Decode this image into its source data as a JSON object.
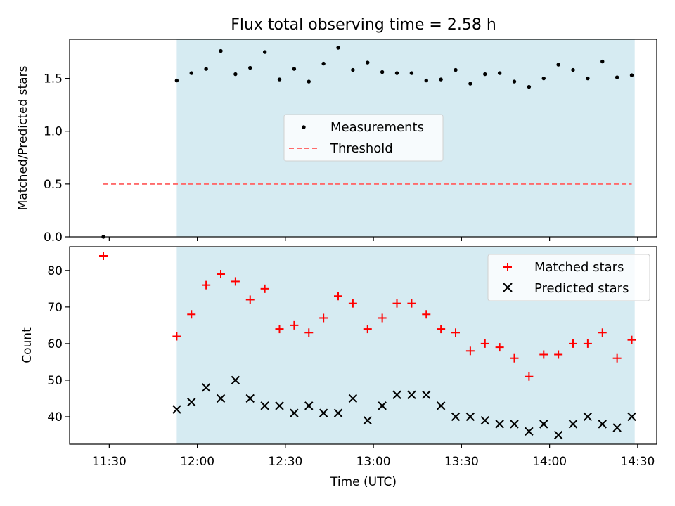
{
  "title": "Flux total observing time = 2.58 h",
  "chart_data": [
    {
      "type": "scatter",
      "ylabel": "Matched/Predicted stars",
      "ylim": [
        0,
        1.87
      ],
      "yticks": [
        "0.0",
        "0.5",
        "1.0",
        "1.5"
      ],
      "ytick_values": [
        0,
        0.5,
        1.0,
        1.5
      ],
      "shaded_span": [
        "11:53",
        "14:29"
      ],
      "legend": {
        "position": "center",
        "entries": [
          "Measurements",
          "Threshold"
        ]
      },
      "series": [
        {
          "name": "Measurements",
          "color": "#000000",
          "x": [
            "11:28",
            "11:53",
            "11:58",
            "12:03",
            "12:08",
            "12:13",
            "12:18",
            "12:23",
            "12:28",
            "12:33",
            "12:38",
            "12:43",
            "12:48",
            "12:53",
            "12:58",
            "13:03",
            "13:08",
            "13:13",
            "13:18",
            "13:23",
            "13:28",
            "13:33",
            "13:38",
            "13:43",
            "13:48",
            "13:53",
            "13:58",
            "14:03",
            "14:08",
            "14:13",
            "14:18",
            "14:23",
            "14:28"
          ],
          "values": [
            0.0,
            1.48,
            1.55,
            1.59,
            1.76,
            1.54,
            1.6,
            1.75,
            1.49,
            1.59,
            1.47,
            1.64,
            1.79,
            1.58,
            1.65,
            1.56,
            1.55,
            1.55,
            1.48,
            1.49,
            1.58,
            1.45,
            1.54,
            1.55,
            1.47,
            1.42,
            1.5,
            1.63,
            1.58,
            1.5,
            1.66,
            1.51,
            1.53
          ]
        },
        {
          "name": "Threshold",
          "color": "#ff6b6b",
          "x": [
            "11:28",
            "14:28"
          ],
          "values": [
            0.5,
            0.5
          ]
        }
      ]
    },
    {
      "type": "scatter",
      "xlabel": "Time (UTC)",
      "ylabel": "Count",
      "ylim": [
        32.5,
        86.5
      ],
      "yticks": [
        "40",
        "50",
        "60",
        "70",
        "80"
      ],
      "ytick_values": [
        40,
        50,
        60,
        70,
        80
      ],
      "xticks": [
        "11:30",
        "12:00",
        "12:30",
        "13:00",
        "13:30",
        "14:00",
        "14:30"
      ],
      "shaded_span": [
        "11:53",
        "14:29"
      ],
      "legend": {
        "position": "top-right",
        "entries": [
          "Matched stars",
          "Predicted stars"
        ]
      },
      "series": [
        {
          "name": "Matched stars",
          "color": "#ff0000",
          "x": [
            "11:28",
            "11:53",
            "11:58",
            "12:03",
            "12:08",
            "12:13",
            "12:18",
            "12:23",
            "12:28",
            "12:33",
            "12:38",
            "12:43",
            "12:48",
            "12:53",
            "12:58",
            "13:03",
            "13:08",
            "13:13",
            "13:18",
            "13:23",
            "13:28",
            "13:33",
            "13:38",
            "13:43",
            "13:48",
            "13:53",
            "13:58",
            "14:03",
            "14:08",
            "14:13",
            "14:18",
            "14:23",
            "14:28"
          ],
          "values": [
            84,
            62,
            68,
            76,
            79,
            77,
            72,
            75,
            64,
            65,
            63,
            67,
            73,
            71,
            64,
            67,
            71,
            71,
            68,
            64,
            63,
            58,
            60,
            59,
            56,
            51,
            57,
            57,
            60,
            60,
            63,
            56,
            61
          ]
        },
        {
          "name": "Predicted stars",
          "color": "#000000",
          "x": [
            "11:53",
            "11:58",
            "12:03",
            "12:08",
            "12:13",
            "12:18",
            "12:23",
            "12:28",
            "12:33",
            "12:38",
            "12:43",
            "12:48",
            "12:53",
            "12:58",
            "13:03",
            "13:08",
            "13:13",
            "13:18",
            "13:23",
            "13:28",
            "13:33",
            "13:38",
            "13:43",
            "13:48",
            "13:53",
            "13:58",
            "14:03",
            "14:08",
            "14:13",
            "14:18",
            "14:23",
            "14:28"
          ],
          "values": [
            42,
            44,
            48,
            45,
            50,
            45,
            43,
            43,
            41,
            43,
            41,
            41,
            45,
            39,
            43,
            46,
            46,
            46,
            43,
            40,
            40,
            39,
            38,
            38,
            36,
            38,
            35,
            38,
            40,
            38,
            37,
            40
          ]
        }
      ]
    }
  ],
  "colors": {
    "shade": "#add8e6",
    "measurement": "#000000",
    "threshold": "#ff6b6b",
    "matched": "#ff0000",
    "predicted": "#000000"
  }
}
